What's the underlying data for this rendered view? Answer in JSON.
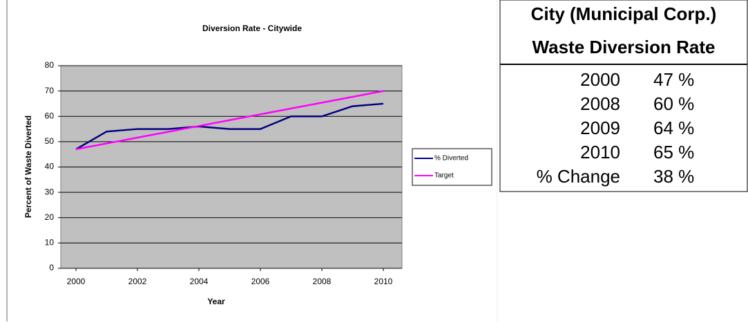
{
  "chart_data": {
    "type": "line",
    "title": "Diversion Rate - Citywide",
    "x_label": "Year",
    "y_label": "Percent of Waste Diverted",
    "x": [
      2000,
      2001,
      2002,
      2003,
      2004,
      2005,
      2006,
      2007,
      2008,
      2009,
      2010
    ],
    "series": [
      {
        "name": "% Diverted",
        "color": "#000080",
        "values": [
          47,
          54,
          55,
          55,
          56,
          55,
          55,
          60,
          60,
          64,
          65
        ]
      },
      {
        "name": "Target",
        "color": "#ff00ff",
        "values": [
          47,
          49.3,
          51.6,
          53.9,
          56.2,
          58.5,
          60.8,
          63.1,
          65.4,
          67.7,
          70
        ]
      }
    ],
    "xlim": [
      2000,
      2010
    ],
    "xticks": [
      2000,
      2002,
      2004,
      2006,
      2008,
      2010
    ],
    "ylim": [
      0,
      80
    ],
    "yticks": [
      0,
      10,
      20,
      30,
      40,
      50,
      60,
      70,
      80
    ],
    "grid": true,
    "legend": "right",
    "plot_background": "#c0c0c0"
  },
  "table": {
    "title": [
      "City (Municipal Corp.)",
      "Waste Diversion Rate"
    ],
    "rows": [
      [
        "2000",
        "47 %"
      ],
      [
        "2008",
        "60 %"
      ],
      [
        "2009",
        "64 %"
      ],
      [
        "2010",
        "65 %"
      ],
      [
        "% Change",
        "38 %"
      ]
    ]
  }
}
